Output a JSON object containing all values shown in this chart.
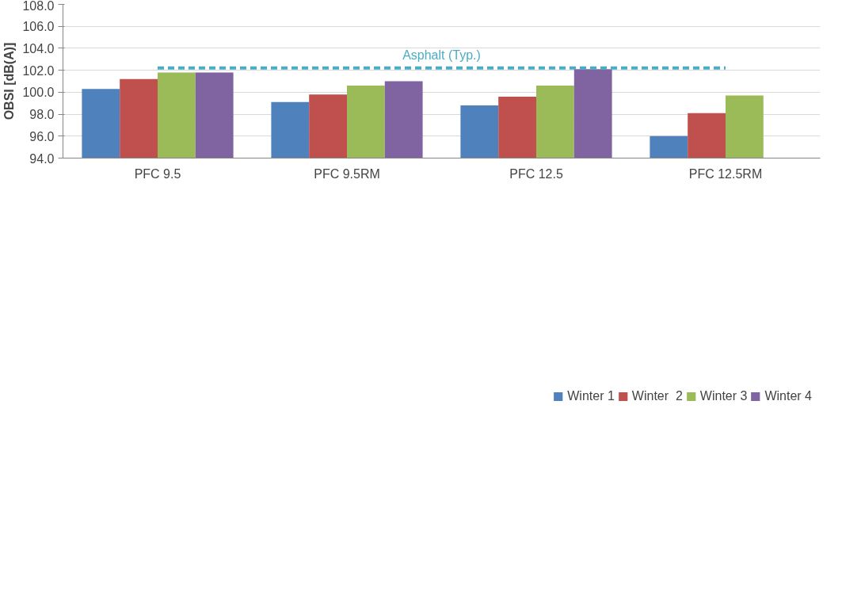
{
  "chart_data": {
    "type": "bar",
    "ylabel": "OBSI [dB(A)]",
    "categories": [
      "PFC 9.5",
      "PFC 9.5RM",
      "PFC 12.5",
      "PFC 12.5RM"
    ],
    "series": [
      {
        "name": "Winter 1",
        "color": "#4f81bd",
        "values": [
          100.3,
          99.1,
          98.8,
          96.0
        ]
      },
      {
        "name": "Winter  2",
        "color": "#c0504d",
        "values": [
          101.2,
          99.8,
          99.6,
          98.1
        ]
      },
      {
        "name": "Winter 3",
        "color": "#9bbb59",
        "values": [
          101.8,
          100.6,
          100.6,
          99.7
        ]
      },
      {
        "name": "Winter 4",
        "color": "#8064a2",
        "values": [
          101.8,
          101.0,
          102.1,
          null
        ]
      }
    ],
    "ylim": [
      94,
      108
    ],
    "yticks": [
      {
        "value": 94,
        "label": "94.0"
      },
      {
        "value": 96,
        "label": "96.0"
      },
      {
        "value": 98,
        "label": "98.0"
      },
      {
        "value": 100,
        "label": "100.0"
      },
      {
        "value": 102,
        "label": "102.0"
      },
      {
        "value": 104,
        "label": "104.0"
      },
      {
        "value": 106,
        "label": "106.0"
      },
      {
        "value": 108,
        "label": "108.0"
      }
    ],
    "ref_lines": [
      {
        "axis": "y",
        "value": 102.2,
        "label": "Asphalt (Typ.)",
        "color": "#4bacc6",
        "line_style": "dashed"
      }
    ],
    "grid": "y",
    "legend": "bottom"
  }
}
